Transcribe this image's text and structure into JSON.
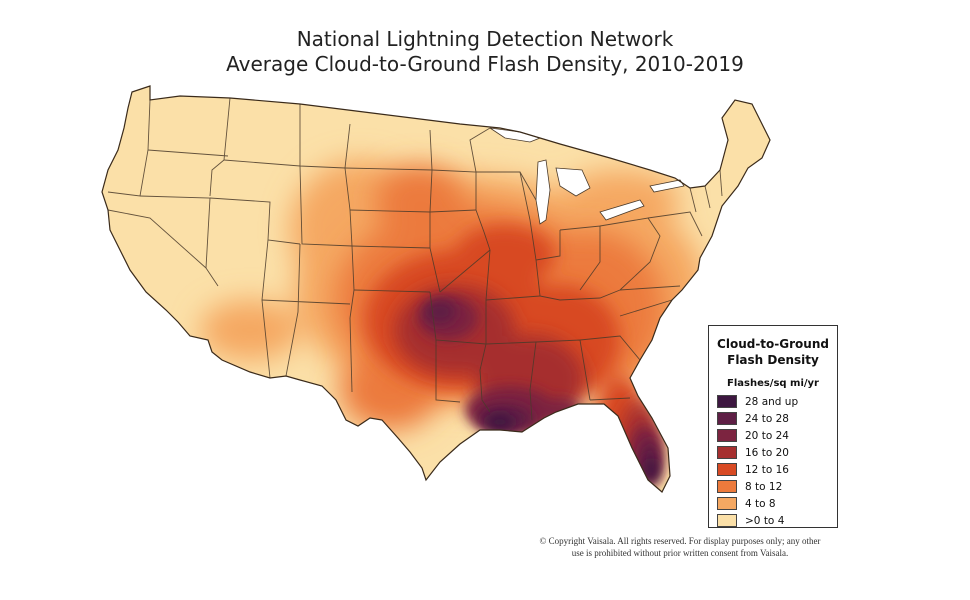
{
  "title": {
    "line1": "National Lightning Detection Network",
    "line2": "Average Cloud-to-Ground Flash Density, 2010-2019"
  },
  "legend": {
    "title_line1": "Cloud-to-Ground",
    "title_line2": "Flash Density",
    "units": "Flashes/sq mi/yr",
    "classes": [
      {
        "label": "28 and up",
        "color": "#3d1740"
      },
      {
        "label": "24 to 28",
        "color": "#5e1f45"
      },
      {
        "label": "20 to 24",
        "color": "#7c2440"
      },
      {
        "label": "16 to 20",
        "color": "#a62f2f"
      },
      {
        "label": "12 to 16",
        "color": "#d84a24"
      },
      {
        "label": "8 to 12",
        "color": "#ec7a3c"
      },
      {
        "label": "4 to 8",
        "color": "#f5a862"
      },
      {
        "label": ">0 to 4",
        "color": "#fbe0a8"
      }
    ]
  },
  "copyright": {
    "line1": "© Copyright Vaisala. All rights reserved. For display purposes only; any other",
    "line2": "use is prohibited without prior written consent from Vaisala."
  },
  "map": {
    "background_color": "#fbe0a8",
    "border_color": "#4a3a2a"
  }
}
